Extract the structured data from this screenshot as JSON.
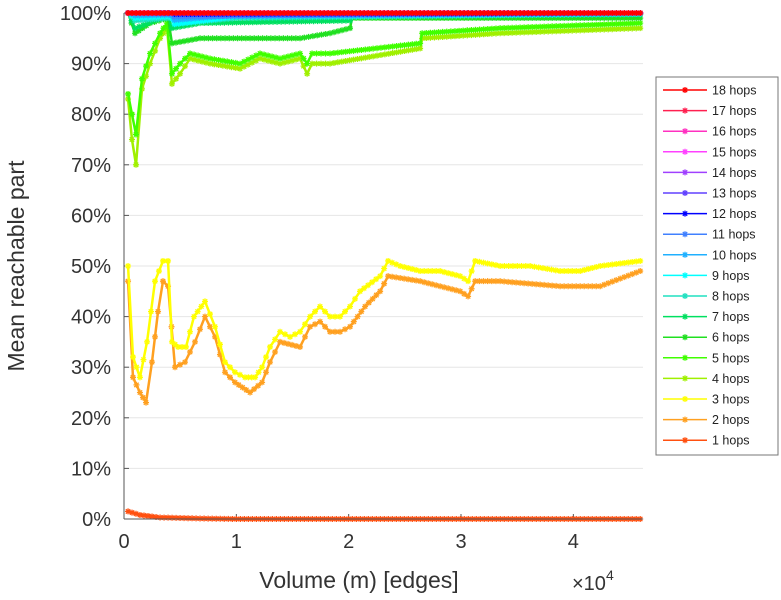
{
  "chart_data": {
    "type": "line",
    "xlabel": "Volume (m) [edges]",
    "ylabel": "Mean reachable part",
    "x_multiplier": "×10",
    "x_multiplier_exp": "4",
    "xlim": [
      0,
      4.62
    ],
    "ylim": [
      0,
      100
    ],
    "xticks": [
      0,
      1,
      2,
      3,
      4
    ],
    "xtick_labels": [
      "0",
      "1",
      "2",
      "3",
      "4"
    ],
    "yticks": [
      0,
      10,
      20,
      30,
      40,
      50,
      60,
      70,
      80,
      90,
      100
    ],
    "ytick_labels": [
      "0%",
      "10%",
      "20%",
      "30%",
      "40%",
      "50%",
      "60%",
      "70%",
      "80%",
      "90%",
      "100%"
    ],
    "grid": "horizontal",
    "legend_position": "right",
    "series": [
      {
        "name": "18 hops",
        "color": "#ff0000",
        "x": [
          0.036,
          4.595
        ],
        "y": [
          100,
          100
        ]
      },
      {
        "name": "17 hops",
        "color": "#ff2050",
        "x": [
          0.036,
          4.595
        ],
        "y": [
          100,
          100
        ]
      },
      {
        "name": "16 hops",
        "color": "#ff30c0",
        "x": [
          0.036,
          4.595
        ],
        "y": [
          100,
          100
        ]
      },
      {
        "name": "15 hops",
        "color": "#ff40ff",
        "x": [
          0.036,
          4.595
        ],
        "y": [
          100,
          100
        ]
      },
      {
        "name": "14 hops",
        "color": "#a040ff",
        "x": [
          0.036,
          4.595
        ],
        "y": [
          100,
          100
        ]
      },
      {
        "name": "13 hops",
        "color": "#6040ff",
        "x": [
          0.036,
          4.595
        ],
        "y": [
          100,
          100
        ]
      },
      {
        "name": "12 hops",
        "color": "#0000ff",
        "x": [
          0.036,
          0.4,
          0.45,
          4.595
        ],
        "y": [
          100,
          100,
          99.8,
          100
        ]
      },
      {
        "name": "11 hops",
        "color": "#4080ff",
        "x": [
          0.036,
          0.4,
          0.45,
          4.595
        ],
        "y": [
          100,
          99.8,
          99.3,
          100
        ]
      },
      {
        "name": "10 hops",
        "color": "#20b0ff",
        "x": [
          0.036,
          0.1,
          0.4,
          0.45,
          1.0,
          4.595
        ],
        "y": [
          100,
          99.5,
          99.6,
          98.6,
          99.6,
          99.9
        ]
      },
      {
        "name": "9 hops",
        "color": "#00ffff",
        "x": [
          0.036,
          0.1,
          0.4,
          0.45,
          1.0,
          4.595
        ],
        "y": [
          100,
          99.0,
          99.3,
          97.8,
          99.3,
          99.8
        ]
      },
      {
        "name": "8 hops",
        "color": "#20e0c0",
        "x": [
          0.036,
          0.098,
          0.41,
          0.454,
          1.0,
          4.595
        ],
        "y": [
          100,
          98.5,
          99,
          97.8,
          99,
          99.8
        ]
      },
      {
        "name": "7 hops",
        "color": "#00e060",
        "x": [
          0.036,
          0.098,
          0.392,
          0.427,
          0.677,
          2.012,
          2.03,
          4.595
        ],
        "y": [
          100,
          97,
          99.5,
          97,
          98,
          98.5,
          99.5,
          99.7
        ]
      },
      {
        "name": "6 hops",
        "color": "#20e020",
        "x": [
          0.036,
          0.098,
          0.232,
          0.392,
          0.427,
          0.677,
          1.122,
          1.567,
          1.834,
          2.012,
          2.03,
          4.595
        ],
        "y": [
          100,
          96,
          98,
          99,
          94,
          95,
          95,
          95,
          96,
          97,
          99,
          99
        ]
      },
      {
        "name": "5 hops",
        "color": "#40ff00",
        "x": [
          0.036,
          0.071,
          0.107,
          0.16,
          0.232,
          0.321,
          0.383,
          0.427,
          0.499,
          0.588,
          0.766,
          1.033,
          1.211,
          1.389,
          1.567,
          1.63,
          1.674,
          1.834,
          2.636,
          2.654,
          3.348,
          4.595
        ],
        "y": [
          84,
          80,
          76,
          87,
          92,
          96,
          98,
          88,
          90,
          92,
          91,
          90,
          92,
          91,
          92,
          90,
          92,
          92,
          94,
          96,
          97,
          98
        ]
      },
      {
        "name": "4 hops",
        "color": "#a0f000",
        "x": [
          0.036,
          0.071,
          0.107,
          0.16,
          0.232,
          0.321,
          0.383,
          0.427,
          0.499,
          0.588,
          0.766,
          1.033,
          1.211,
          1.389,
          1.567,
          1.63,
          1.674,
          1.834,
          2.636,
          2.654,
          3.348,
          4.595
        ],
        "y": [
          83,
          75,
          70,
          85,
          90,
          95,
          97,
          86,
          88,
          91,
          90,
          89,
          91,
          90,
          91,
          88,
          90,
          90,
          93,
          95,
          96,
          97
        ]
      },
      {
        "name": "3 hops",
        "color": "#ffff00",
        "x": [
          0.036,
          0.08,
          0.142,
          0.205,
          0.276,
          0.347,
          0.392,
          0.427,
          0.481,
          0.552,
          0.623,
          0.721,
          0.81,
          0.899,
          0.988,
          1.077,
          1.167,
          1.229,
          1.3,
          1.389,
          1.478,
          1.567,
          1.656,
          1.745,
          1.834,
          1.923,
          2.012,
          2.101,
          2.28,
          2.351,
          2.458,
          2.636,
          2.814,
          2.992,
          3.063,
          3.126,
          3.348,
          3.615,
          3.882,
          4.061,
          4.239,
          4.595
        ],
        "y": [
          50,
          32,
          28,
          35,
          47,
          51,
          51,
          35,
          34,
          34,
          40,
          43,
          38,
          31,
          29,
          28,
          28,
          30,
          34,
          37,
          36,
          37,
          40,
          42,
          40,
          40,
          42,
          45,
          48,
          51,
          50,
          49,
          49,
          48,
          47,
          51,
          50,
          50,
          49,
          49,
          50,
          51
        ]
      },
      {
        "name": "2 hops",
        "color": "#ffa020",
        "x": [
          0.036,
          0.08,
          0.142,
          0.196,
          0.249,
          0.303,
          0.347,
          0.392,
          0.454,
          0.543,
          0.632,
          0.721,
          0.81,
          0.899,
          0.988,
          1.122,
          1.229,
          1.3,
          1.389,
          1.567,
          1.656,
          1.745,
          1.834,
          1.923,
          2.012,
          2.146,
          2.28,
          2.351,
          2.636,
          2.992,
          3.063,
          3.126,
          3.348,
          3.882,
          4.239,
          4.595
        ],
        "y": [
          47,
          28,
          25,
          23,
          31,
          41,
          47,
          46,
          30,
          31,
          35,
          40,
          36,
          29,
          27,
          25,
          27,
          31,
          35,
          34,
          38,
          39,
          37,
          37,
          38,
          42,
          45,
          48,
          47,
          45,
          44,
          47,
          47,
          46,
          46,
          49
        ]
      },
      {
        "name": "1 hops",
        "color": "#ff5010",
        "x": [
          0.036,
          0.142,
          0.321,
          0.677,
          1.0,
          4.595
        ],
        "y": [
          1.5,
          0.8,
          0.3,
          0.1,
          0,
          0
        ]
      }
    ]
  }
}
